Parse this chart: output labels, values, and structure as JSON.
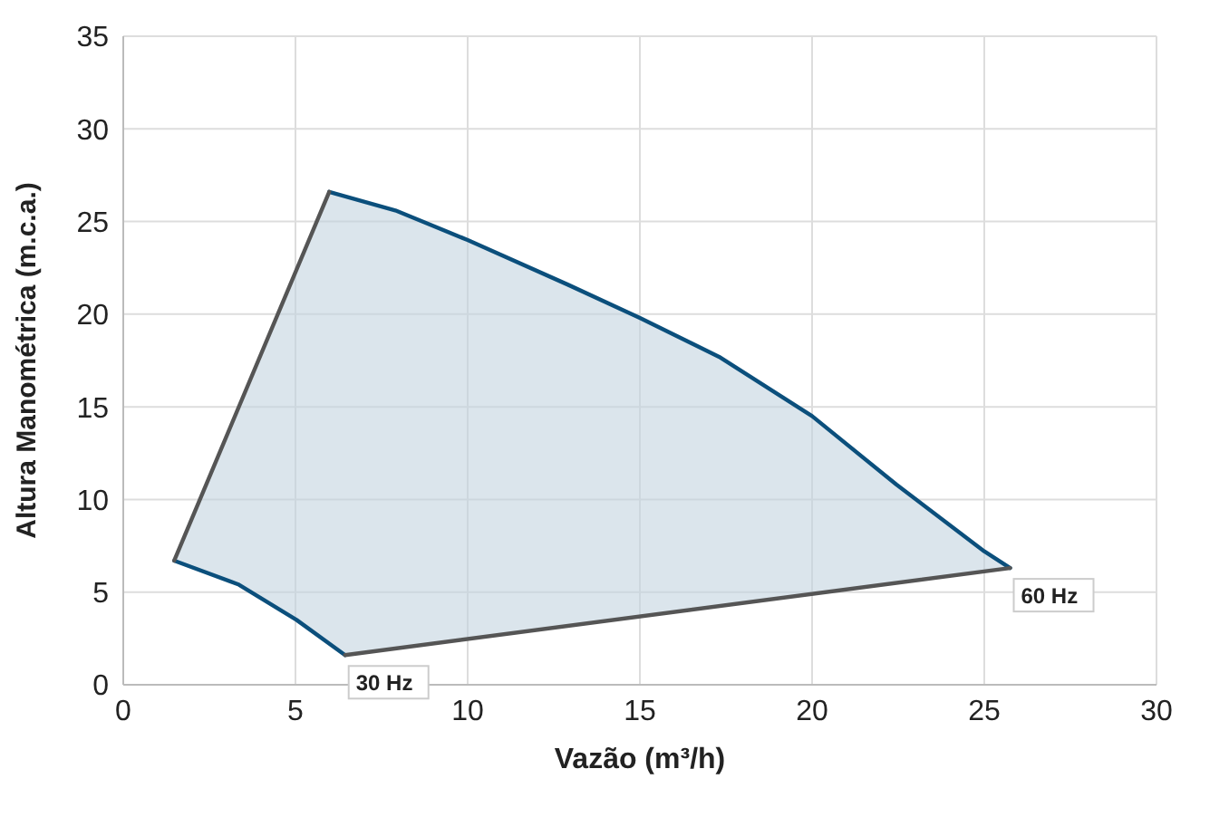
{
  "chart_data": {
    "type": "line",
    "xlabel": "Vazão (m³/h)",
    "ylabel": "Altura Manométrica (m.c.a.)",
    "xlim": [
      0,
      30
    ],
    "xticks": [
      0,
      5,
      10,
      15,
      20,
      25,
      30
    ],
    "ylim": [
      0,
      35
    ],
    "yticks": [
      0,
      5,
      10,
      15,
      20,
      25,
      30,
      35
    ],
    "grid": true,
    "marker": "none",
    "series": [
      {
        "color": "#0b4f7c",
        "x": [
          5.98,
          7.9,
          10,
          12.9,
          15,
          17.3,
          20,
          22.45,
          25,
          25.75
        ],
        "values": [
          26.6,
          25.6,
          24.0,
          21.6,
          19.8,
          17.7,
          14.5,
          10.8,
          7.2,
          6.3
        ]
      },
      {
        "color": "#0b4f7c",
        "x": [
          1.48,
          3.36,
          5.03,
          6.44
        ],
        "values": [
          6.7,
          5.4,
          3.5,
          1.6
        ]
      },
      {
        "color": "#555555",
        "x": [
          1.48,
          5.98
        ],
        "values": [
          6.7,
          26.6
        ]
      },
      {
        "color": "#555555",
        "x": [
          6.44,
          25.75
        ],
        "values": [
          1.6,
          6.3
        ]
      }
    ],
    "annotations": [
      {
        "text": "60 Hz",
        "x": 25.75,
        "y": 6.3
      },
      {
        "text": "30 Hz",
        "x": 6.44,
        "y": 1.6
      }
    ]
  }
}
